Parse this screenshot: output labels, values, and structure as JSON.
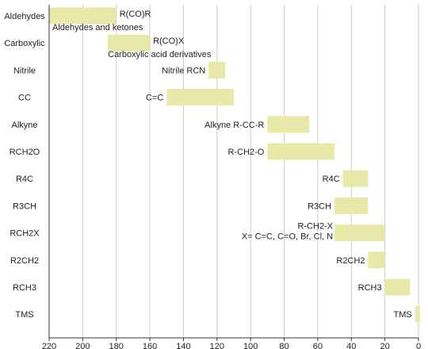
{
  "chart_data": {
    "type": "bar",
    "orientation": "horizontal-range",
    "x_reversed": true,
    "xlim": [
      220,
      0
    ],
    "x_ticks": [
      220,
      200,
      180,
      160,
      140,
      120,
      100,
      80,
      60,
      40,
      20,
      0
    ],
    "xlabel": "",
    "ylabel": "",
    "grid": true,
    "legend": false,
    "colors": {
      "bar": "#e8e8a8",
      "grid": "#cccccc",
      "axis": "#333333"
    },
    "categories": [
      "Aldehydes",
      "Carboxylic",
      "Nitrile",
      "CC",
      "Alkyne",
      "RCH2O",
      "R4C",
      "R3CH",
      "RCH2X",
      "R2CH2",
      "RCH3",
      "TMS"
    ],
    "ranges": [
      {
        "category": "Aldehydes",
        "start": 220,
        "end": 180,
        "label": "R(CO)R",
        "sublabel": "Aldehydes and ketones"
      },
      {
        "category": "Carboxylic",
        "start": 185,
        "end": 160,
        "label": "R(CO)X",
        "sublabel": "Carboxylic acid derivatives"
      },
      {
        "category": "Nitrile",
        "start": 125,
        "end": 115,
        "label": "Nitrile RCN",
        "sublabel": ""
      },
      {
        "category": "CC",
        "start": 150,
        "end": 110,
        "label": "C=C",
        "sublabel": ""
      },
      {
        "category": "Alkyne",
        "start": 90,
        "end": 65,
        "label": "Alkyne R-CC-R",
        "sublabel": ""
      },
      {
        "category": "RCH2O",
        "start": 90,
        "end": 50,
        "label": "R-CH2-O",
        "sublabel": ""
      },
      {
        "category": "R4C",
        "start": 45,
        "end": 30,
        "label": "R4C",
        "sublabel": ""
      },
      {
        "category": "R3CH",
        "start": 50,
        "end": 30,
        "label": "R3CH",
        "sublabel": ""
      },
      {
        "category": "RCH2X",
        "start": 50,
        "end": 20,
        "label": "R-CH2-X",
        "sublabel": "X= C=C, C=O, Br, Cl, N"
      },
      {
        "category": "R2CH2",
        "start": 30,
        "end": 20,
        "label": "R2CH2",
        "sublabel": ""
      },
      {
        "category": "RCH3",
        "start": 20,
        "end": 5,
        "label": "RCH3",
        "sublabel": ""
      },
      {
        "category": "TMS",
        "start": 2,
        "end": -1,
        "label": "TMS",
        "sublabel": ""
      }
    ]
  }
}
